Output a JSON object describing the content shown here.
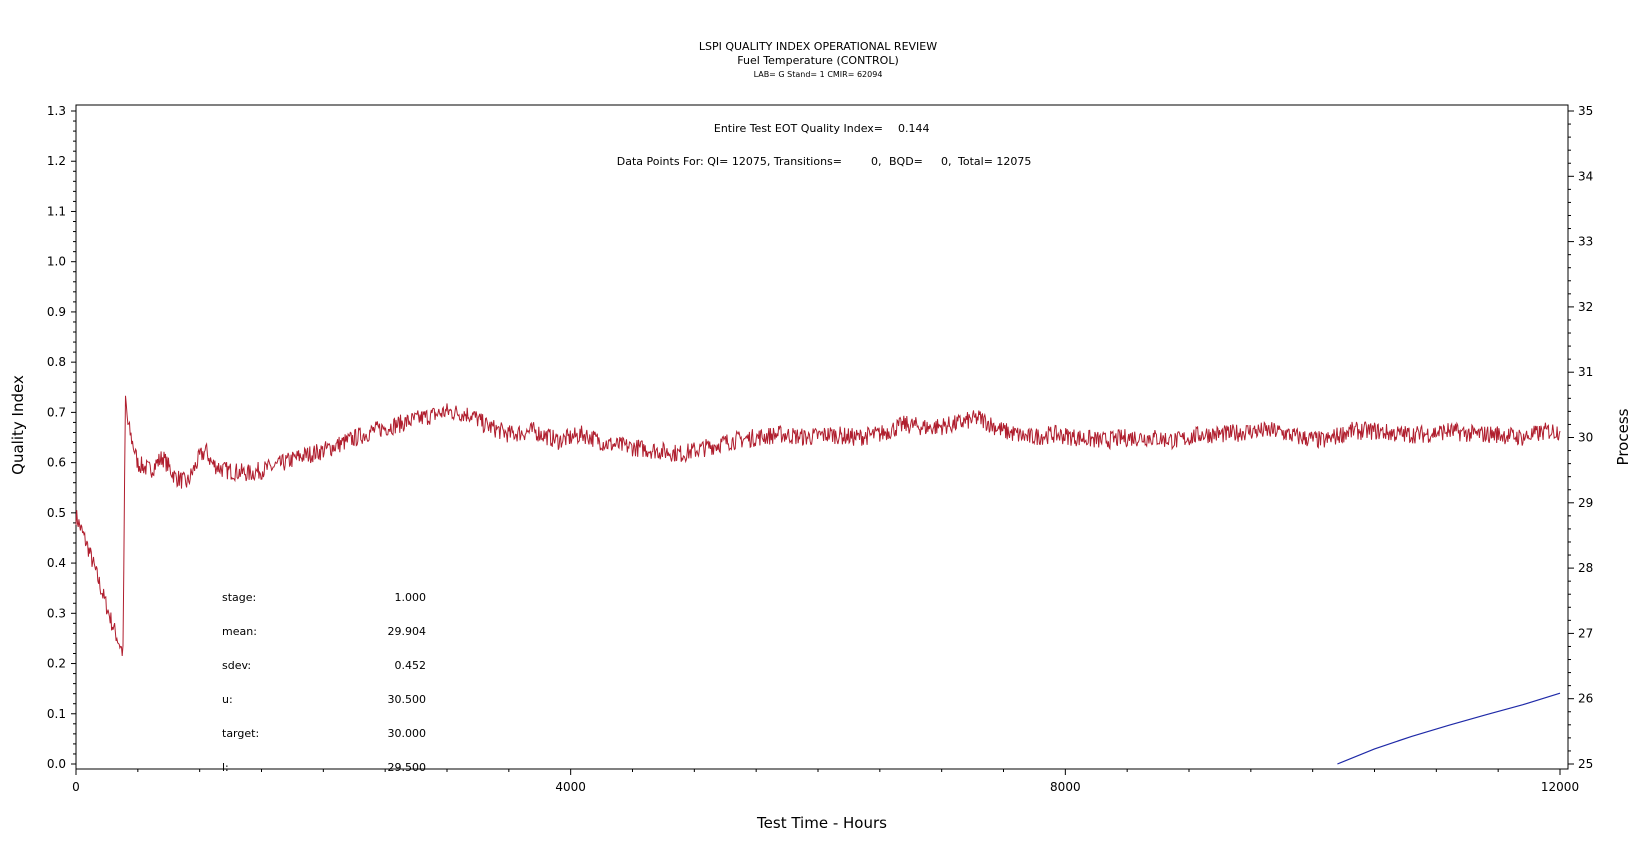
{
  "chart_data": {
    "type": "line",
    "title": "LSPI QUALITY INDEX OPERATIONAL REVIEW",
    "subtitle": "Fuel Temperature (CONTROL)",
    "subsubtitle": "LAB= G Stand= 1 CMIR= 62094",
    "xlabel": "Test Time - Hours",
    "ylabel": "Quality Index",
    "y2label": "Process",
    "xlim": [
      0,
      12000
    ],
    "ylim": [
      0,
      1.3
    ],
    "y2lim": [
      25,
      35
    ],
    "xticks": [
      "0",
      "4000",
      "8000",
      "12000"
    ],
    "yticks": [
      "0.0",
      "0.1",
      "0.2",
      "0.3",
      "0.4",
      "0.5",
      "0.6",
      "0.7",
      "0.8",
      "0.9",
      "1.0",
      "1.1",
      "1.2",
      "1.3"
    ],
    "y2ticks": [
      "25",
      "26",
      "27",
      "28",
      "29",
      "30",
      "31",
      "32",
      "33",
      "34",
      "35"
    ],
    "annotations": {
      "eot_label": "Entire Test EOT Quality Index=",
      "eot_value": "0.144",
      "points_label": "Data Points For: QI= 12075, Transitions=",
      "transitions": "0,",
      "bqd_label": "BQD=",
      "bqd_value": "0,",
      "total": "Total= 12075"
    },
    "stats": [
      {
        "label": "stage:",
        "value": "1.000"
      },
      {
        "label": "mean:",
        "value": "29.904"
      },
      {
        "label": "sdev:",
        "value": "0.452"
      },
      {
        "label": "u:",
        "value": "30.500"
      },
      {
        "label": "target:",
        "value": "30.000"
      },
      {
        "label": "l:",
        "value": "29.500"
      }
    ],
    "series": [
      {
        "axis": "y2",
        "color": "#b01e2e",
        "x": [
          0,
          100,
          200,
          300,
          380,
          400,
          420,
          500,
          600,
          700,
          800,
          900,
          1000,
          1050,
          1100,
          1200,
          1400,
          1600,
          1800,
          2000,
          2200,
          2400,
          2600,
          2800,
          3000,
          3200,
          3300,
          3500,
          3700,
          3900,
          4100,
          4300,
          4500,
          4700,
          4900,
          5100,
          5300,
          5500,
          5700,
          5900,
          6100,
          6300,
          6500,
          6700,
          6900,
          7100,
          7300,
          7500,
          7700,
          7900,
          8100,
          8300,
          8500,
          8700,
          8900,
          9100,
          9300,
          9500,
          9700,
          9900,
          10100,
          10300,
          10500,
          10700,
          10900,
          11100,
          11300,
          11500,
          11700,
          11900,
          12000
        ],
        "values": [
          28.8,
          28.3,
          27.7,
          27.1,
          26.7,
          30.6,
          30.2,
          29.6,
          29.5,
          29.7,
          29.4,
          29.3,
          29.7,
          29.8,
          29.6,
          29.5,
          29.45,
          29.55,
          29.7,
          29.8,
          29.95,
          30.1,
          30.2,
          30.3,
          30.4,
          30.35,
          30.2,
          30.05,
          30.1,
          29.95,
          30.05,
          29.9,
          29.85,
          29.8,
          29.75,
          29.85,
          29.95,
          30.0,
          30.05,
          30.0,
          30.05,
          30.0,
          30.05,
          30.2,
          30.15,
          30.2,
          30.3,
          30.1,
          30.0,
          30.05,
          30.0,
          29.95,
          30.0,
          30.0,
          29.95,
          30.05,
          30.05,
          30.1,
          30.1,
          30.0,
          29.95,
          30.1,
          30.1,
          30.05,
          30.05,
          30.1,
          30.05,
          30.05,
          30.0,
          30.1,
          30.1
        ]
      },
      {
        "axis": "y",
        "color": "#1f2aa8",
        "x": [
          10200,
          10500,
          10800,
          11100,
          11400,
          11700,
          12000
        ],
        "values": [
          0.0,
          0.03,
          0.055,
          0.077,
          0.098,
          0.118,
          0.141
        ]
      }
    ]
  }
}
